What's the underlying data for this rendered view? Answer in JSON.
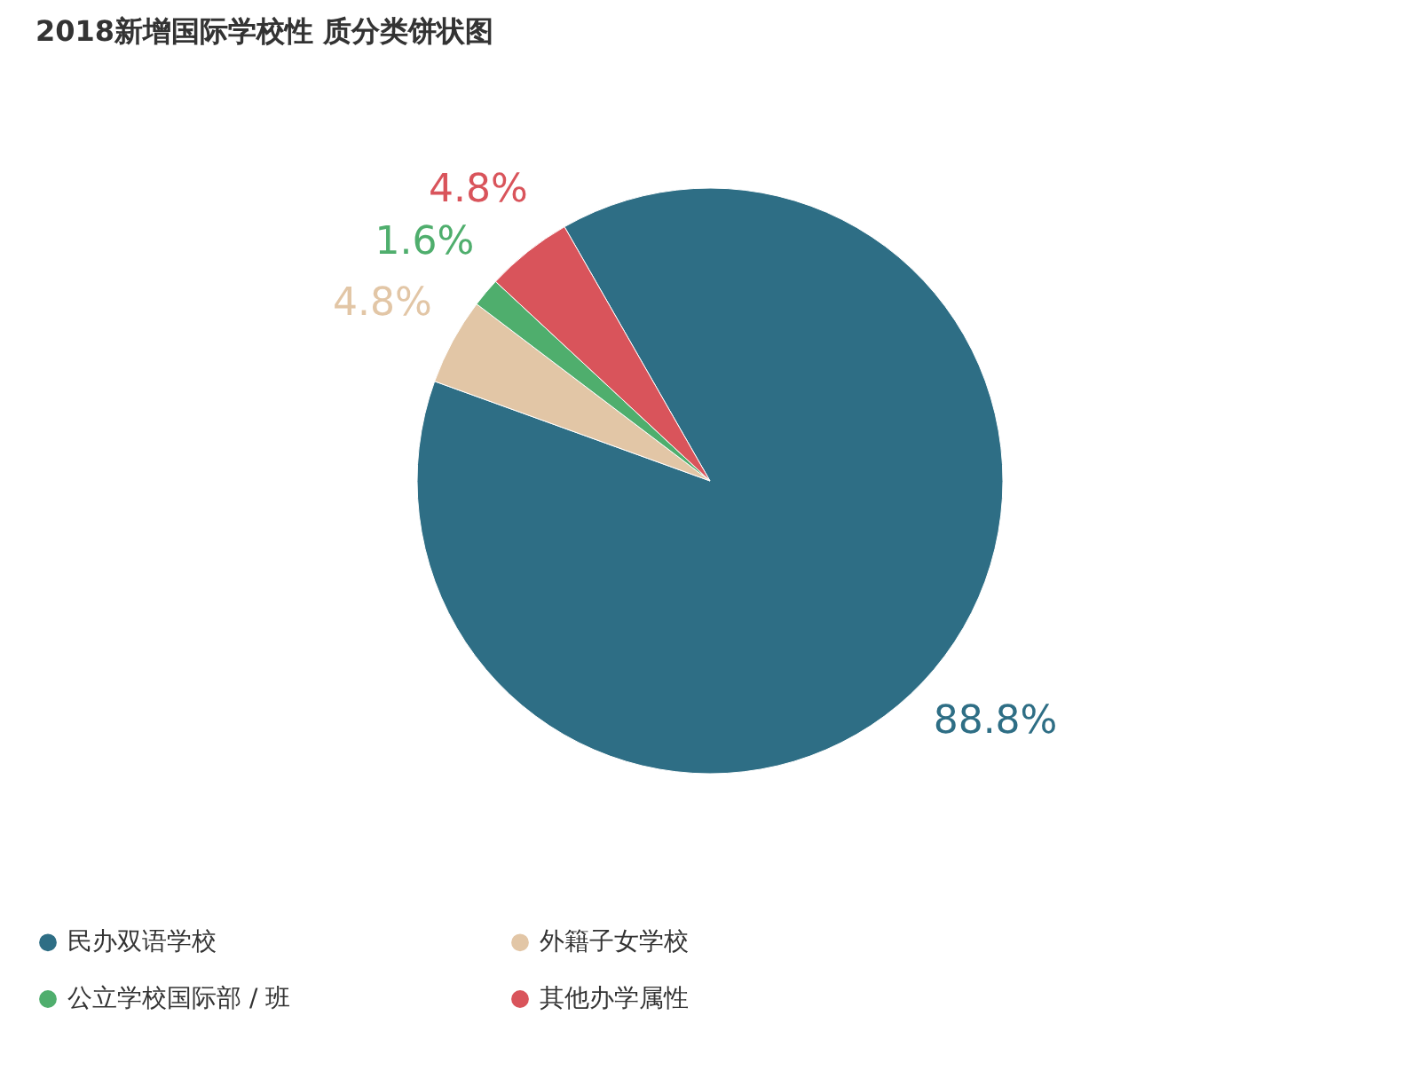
{
  "chart_data": {
    "type": "pie",
    "title": "2018新增国际学校性 质分类饼状图",
    "categories": [
      "民办双语学校",
      "外籍子女学校",
      "公立学校国际部 / 班",
      "其他办学属性"
    ],
    "values": [
      88.8,
      4.8,
      1.6,
      4.8
    ],
    "colors": [
      "#2e6e85",
      "#e2c6a6",
      "#4fae6d",
      "#d9545b"
    ],
    "value_labels": [
      "88.8%",
      "4.8%",
      "1.6%",
      "4.8%"
    ],
    "legend": "bottom"
  }
}
